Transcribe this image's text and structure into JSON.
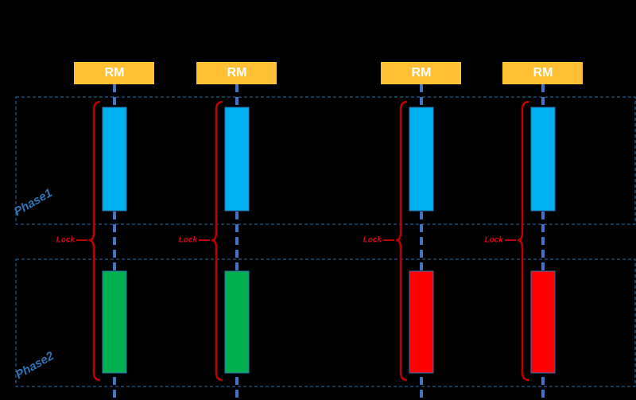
{
  "phases": [
    {
      "label": "Phase1"
    },
    {
      "label": "Phase2"
    }
  ],
  "lanes": [
    {
      "label": "RM",
      "lock": "Lock"
    },
    {
      "label": "RM",
      "lock": "Lock"
    },
    {
      "label": "RM",
      "lock": "Lock"
    },
    {
      "label": "RM",
      "lock": "Lock"
    }
  ]
}
